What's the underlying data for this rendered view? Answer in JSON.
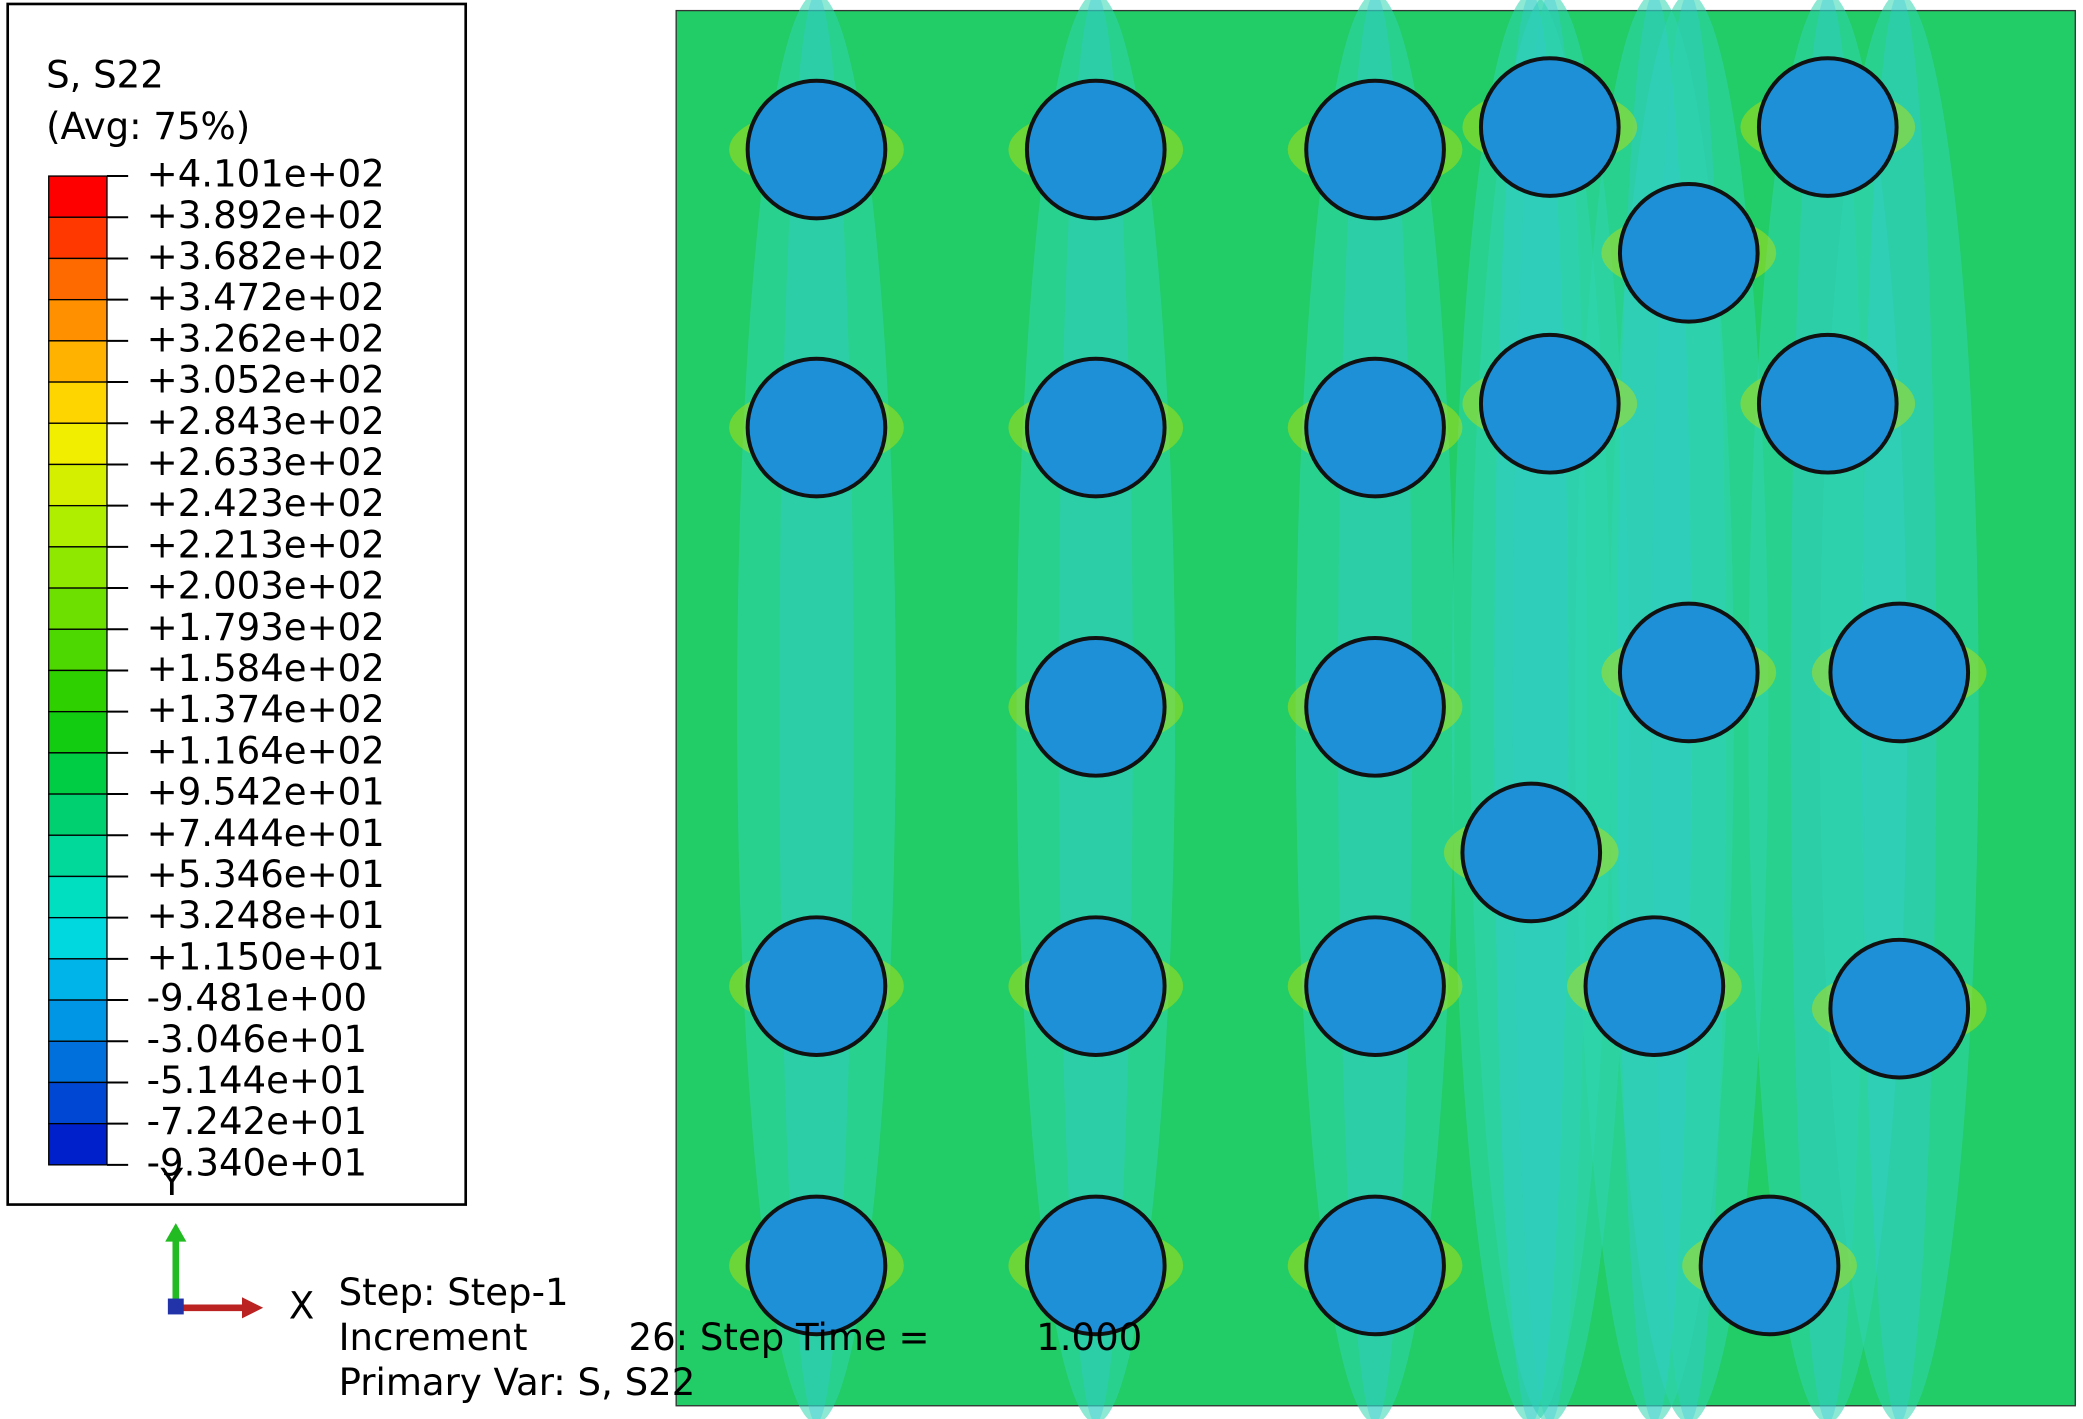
{
  "legend": {
    "title": "S, S22",
    "subtitle": "(Avg: 75%)",
    "labels": [
      "+4.101e+02",
      "+3.892e+02",
      "+3.682e+02",
      "+3.472e+02",
      "+3.262e+02",
      "+3.052e+02",
      "+2.843e+02",
      "+2.633e+02",
      "+2.423e+02",
      "+2.213e+02",
      "+2.003e+02",
      "+1.793e+02",
      "+1.584e+02",
      "+1.374e+02",
      "+1.164e+02",
      "+9.542e+01",
      "+7.444e+01",
      "+5.346e+01",
      "+3.248e+01",
      "+1.150e+01",
      "-9.481e+00",
      "-3.046e+01",
      "-5.144e+01",
      "-7.242e+01",
      "-9.340e+01"
    ],
    "colors": [
      "#ff0000",
      "#ff3800",
      "#ff6a00",
      "#ff9100",
      "#ffb200",
      "#ffd500",
      "#f2ee00",
      "#d4f000",
      "#b0ee00",
      "#8ee800",
      "#6ee000",
      "#4cd800",
      "#2ed000",
      "#12cc12",
      "#00cc44",
      "#00d070",
      "#00d99a",
      "#00e0c0",
      "#00d8e0",
      "#00b4ea",
      "#0096e6",
      "#0070dc",
      "#0048d4",
      "#0020cc"
    ]
  },
  "triad": {
    "y_label": "Y",
    "x_label": "X"
  },
  "info": {
    "step": "Step: Step-1",
    "increment_label": "Increment",
    "increment_value": "26: Step Time =",
    "step_time": "1.000",
    "primary_var": "Primary Var: S, S22"
  }
}
